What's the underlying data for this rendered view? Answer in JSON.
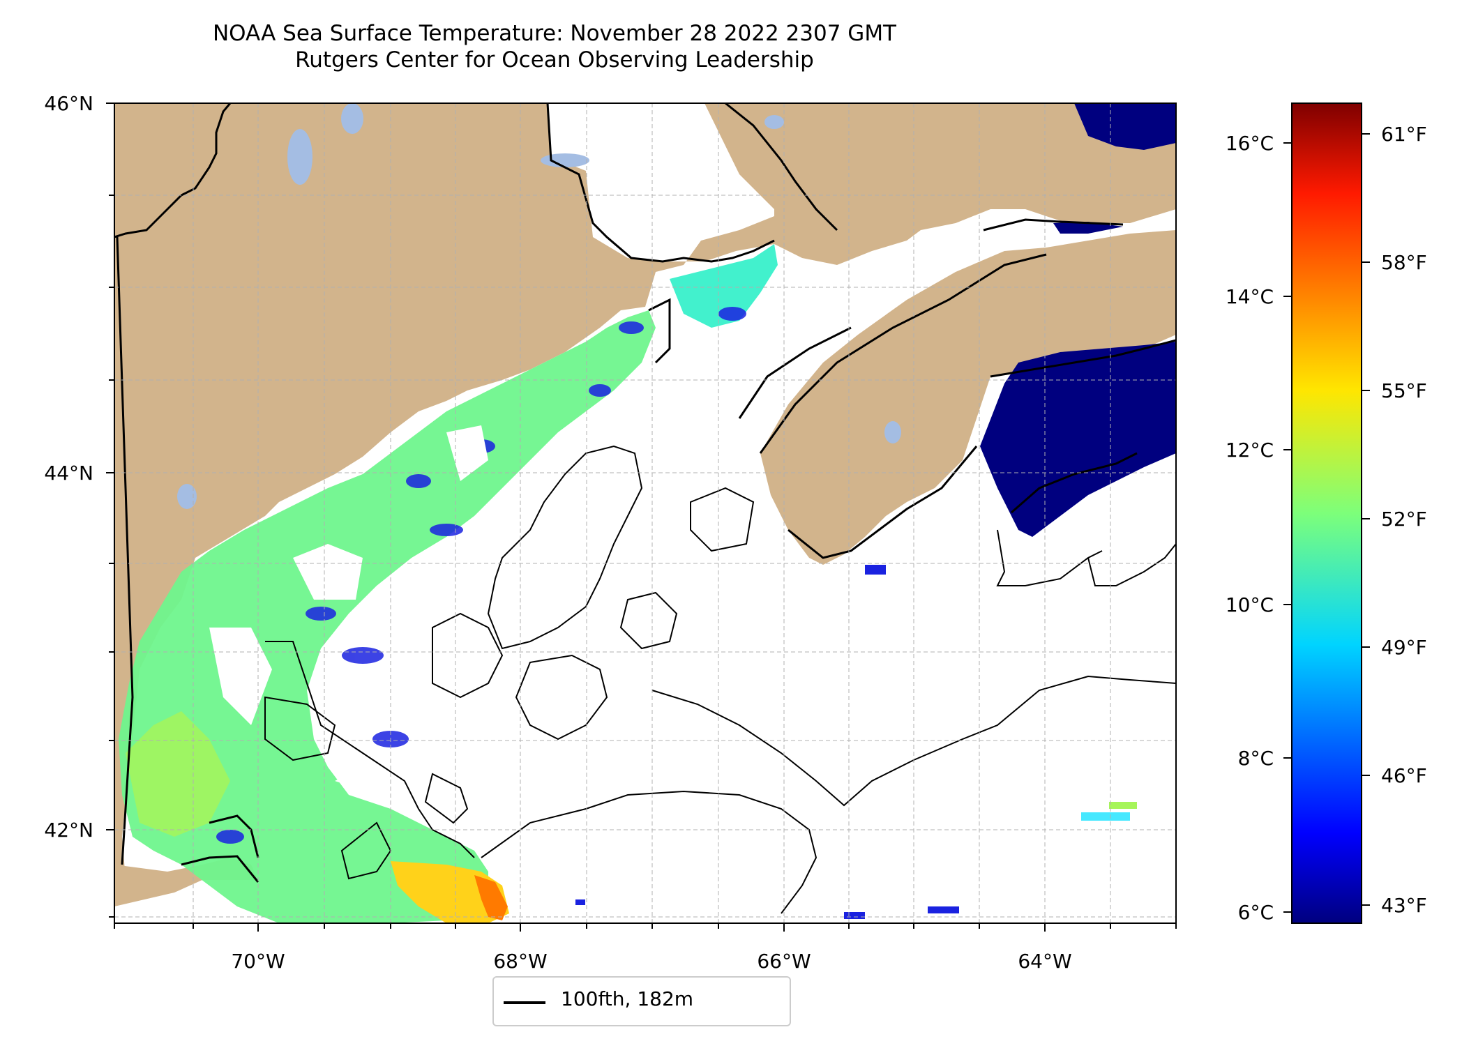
{
  "title": "NOAA Sea Surface Temperature: November 28 2022 2307 GMT",
  "subtitle": "Rutgers Center for Ocean Observing Leadership",
  "axes": {
    "lat_ticks": [
      "46°N",
      "44°N",
      "42°N"
    ],
    "lon_ticks": [
      "70°W",
      "68°W",
      "66°W",
      "64°W"
    ]
  },
  "colorbar": {
    "celsius_ticks": [
      "16°C",
      "14°C",
      "12°C",
      "10°C",
      "8°C",
      "6°C"
    ],
    "fahrenheit_ticks": [
      "61°F",
      "58°F",
      "55°F",
      "52°F",
      "49°F",
      "46°F",
      "43°F"
    ],
    "range_celsius": [
      5.9,
      16.5
    ],
    "colormap": "jet"
  },
  "legend": {
    "label": "100fth, 182m"
  },
  "colors": {
    "land": "#d2b48c",
    "lakes": "#a4bde3",
    "no_data": "#ffffff",
    "coastline": "#000000",
    "grid": "#b0b0b0"
  },
  "map_extent": {
    "lon": [
      -71.0,
      -63.0
    ],
    "lat": [
      41.5,
      46.0
    ]
  }
}
